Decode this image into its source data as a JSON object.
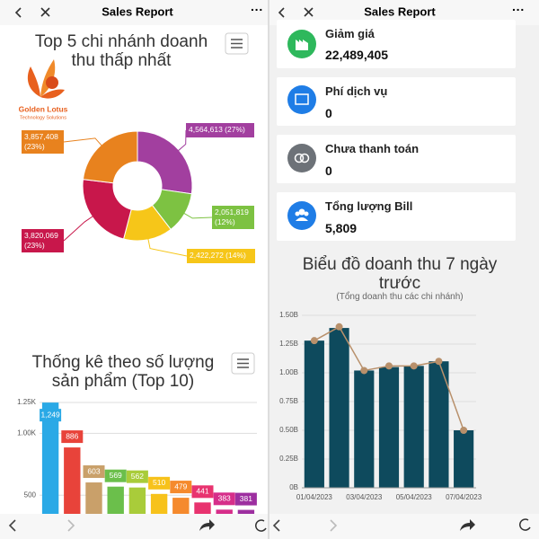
{
  "left": {
    "header_title": "Sales Report",
    "logo": {
      "name": "Golden Lotus",
      "tagline": "Technology Solutions"
    },
    "donut_chart": {
      "type": "pie",
      "title": "Top 5 chi nhánh doanh thu thấp nhất",
      "values": [
        4564613,
        2051819,
        2422272,
        3820069,
        3857408
      ],
      "value_labels": [
        "4,564,613 (27%)",
        "2,051,819 (12%)",
        "2,422,272 (14%)",
        "3,820,069 (23%)",
        "3,857,408 (23%)"
      ],
      "colors": [
        "#a23f9f",
        "#7dc242",
        "#f6c619",
        "#c8174b",
        "#e8821e"
      ]
    },
    "bar_chart": {
      "type": "bar",
      "title": "Thống kê theo số lượng sản phẩm (Top 10)",
      "values": [
        1249,
        886,
        603,
        569,
        562,
        510,
        479,
        441,
        383,
        381
      ],
      "value_labels": [
        "1,249",
        "886",
        "603",
        "569",
        "562",
        "510",
        "479",
        "441",
        "383",
        "381"
      ],
      "colors": [
        "#2aa9e6",
        "#e8433a",
        "#c9a06a",
        "#6bbf4b",
        "#a9cc3a",
        "#f7c21b",
        "#f58a2d",
        "#e8336f",
        "#d62e8a",
        "#9d2fa0"
      ],
      "ylim": [
        0,
        1250
      ],
      "yticks": [
        500,
        {
          "value": 1000,
          "label": "1.00K"
        },
        {
          "value": 1250,
          "label": "1.25K"
        }
      ]
    }
  },
  "right": {
    "header_title": "Sales Report",
    "cards": [
      {
        "label": "Giảm giá",
        "value": "22,489,405"
      },
      {
        "label": "Phí dịch vụ",
        "value": "0"
      },
      {
        "label": "Chưa thanh toán",
        "value": "0"
      },
      {
        "label": "Tổng lượng Bill",
        "value": "5,809"
      }
    ],
    "chart": {
      "type": "bar",
      "title": "Biểu đồ doanh thu 7 ngày trước",
      "subtitle": "(Tổng doanh thu các chi nhánh)",
      "categories": [
        "01/04/2023",
        null,
        "03/04/2023",
        null,
        "05/04/2023",
        null,
        "07/04/2023"
      ],
      "series": [
        {
          "type": "bar",
          "color": "#0e4a5d",
          "values": [
            1280000000,
            1390000000,
            1020000000,
            1050000000,
            1060000000,
            1100000000,
            500000000
          ]
        },
        {
          "type": "line",
          "color": "#b8906b",
          "values": [
            1280000000,
            1400000000,
            1020000000,
            1060000000,
            1060000000,
            1100000000,
            500000000
          ]
        }
      ],
      "ylim": [
        0,
        1500000000
      ],
      "yticks": [
        {
          "value": 0,
          "label": "0B"
        },
        {
          "value": 250000000,
          "label": "0.25B"
        },
        {
          "value": 500000000,
          "label": "0.50B"
        },
        {
          "value": 750000000,
          "label": "0.75B"
        },
        {
          "value": 1000000000,
          "label": "1.00B"
        },
        {
          "value": 1250000000,
          "label": "1.25B"
        },
        {
          "value": 1500000000,
          "label": "1.50B"
        }
      ]
    }
  }
}
